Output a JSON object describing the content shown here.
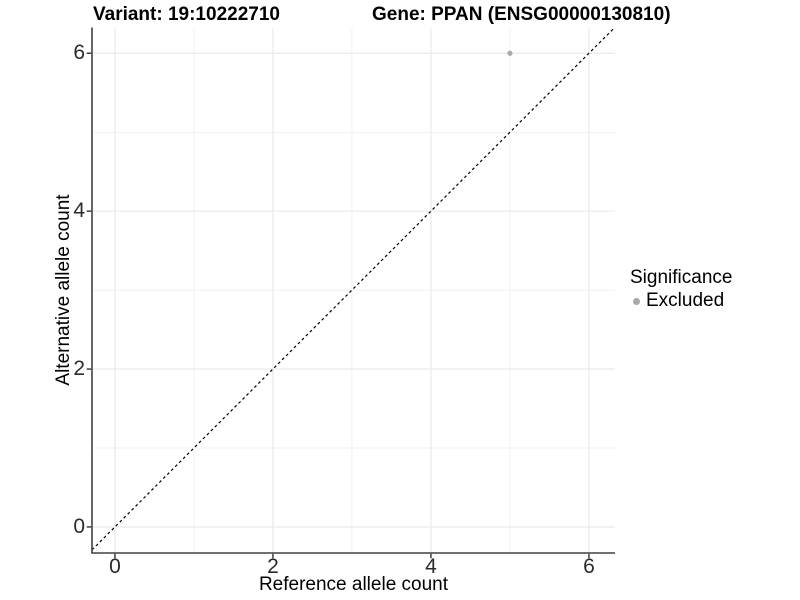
{
  "header": {
    "variant_title": "Variant: 19:10222710",
    "gene_title": "Gene: PPAN (ENSG00000130810)"
  },
  "legend": {
    "title": "Significance",
    "items": [
      {
        "label": "Excluded",
        "color": "#a9a9a9"
      }
    ]
  },
  "colors": {
    "grid_major": "#e6e6e6",
    "grid_minor": "#f1f1f1",
    "axis_line": "#404040",
    "tick_text": "#2b2b2b",
    "point": "#ababab",
    "reference_line": "#000000",
    "background": "#ffffff"
  },
  "chart_data": {
    "type": "scatter",
    "title": "Variant: 19:10222710 | Gene: PPAN (ENSG00000130810)",
    "xlabel": "Reference allele count",
    "ylabel": "Alternative allele count",
    "xlim": [
      -0.29,
      6.33
    ],
    "ylim": [
      -0.33,
      6.32
    ],
    "x_ticks": [
      0,
      2,
      4,
      6
    ],
    "y_ticks": [
      0,
      2,
      4,
      6
    ],
    "x_minor_gridlines": [
      1,
      3,
      5
    ],
    "y_minor_gridlines": [
      1,
      3,
      5
    ],
    "grid": true,
    "legend_position": "right",
    "series": [
      {
        "name": "Excluded",
        "color": "#ababab",
        "points": [
          [
            5,
            6
          ]
        ]
      }
    ],
    "reference_line": {
      "kind": "identity",
      "slope": 1,
      "intercept": 0,
      "style": "dashed",
      "color": "#000000"
    }
  }
}
